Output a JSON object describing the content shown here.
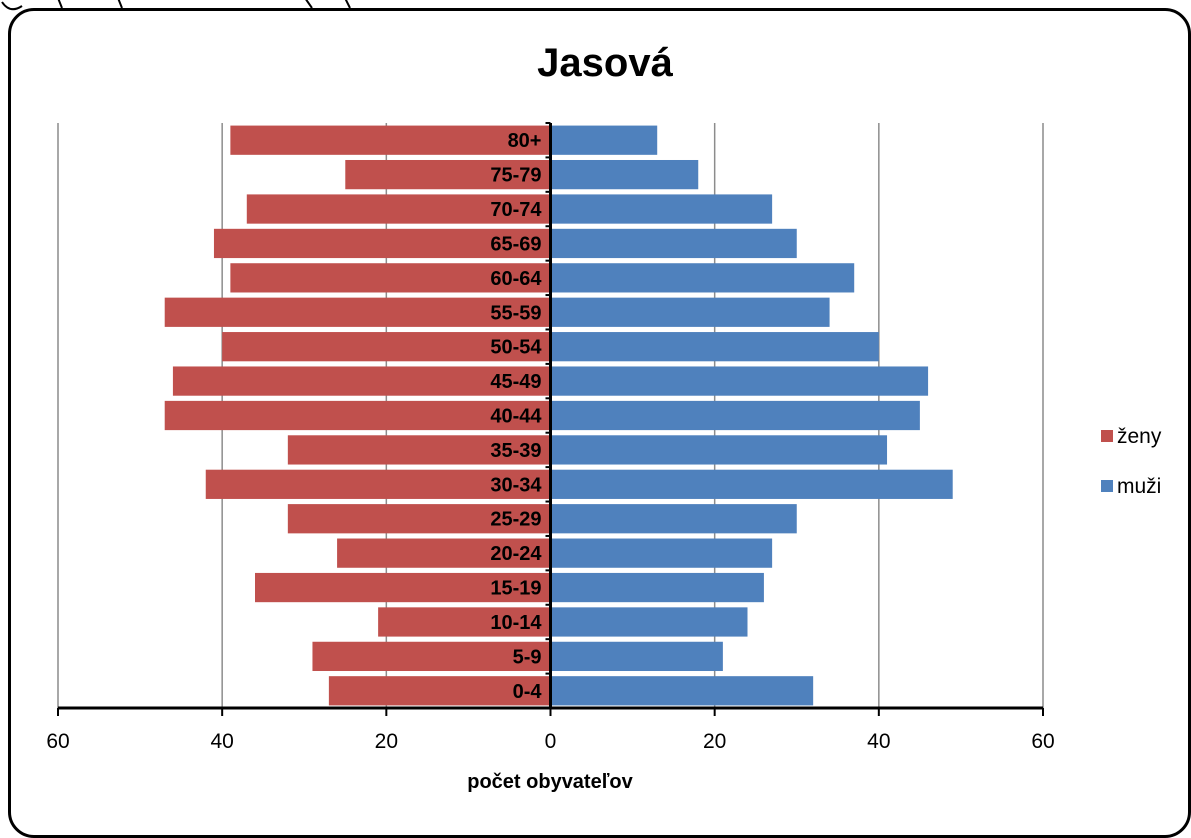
{
  "chart_data": {
    "type": "bar",
    "orientation": "horizontal",
    "title": "Jasová",
    "xlabel": "počet obyvateľov",
    "xlim": [
      -60,
      60
    ],
    "xticks": [
      -60,
      -40,
      -20,
      0,
      20,
      40,
      60
    ],
    "xtick_labels": [
      "60",
      "40",
      "20",
      "0",
      "20",
      "40",
      "60"
    ],
    "grid": true,
    "legend_position": "right",
    "categories": [
      "0-4",
      "5-9",
      "10-14",
      "15-19",
      "20-24",
      "25-29",
      "30-34",
      "35-39",
      "40-44",
      "45-49",
      "50-54",
      "55-59",
      "60-64",
      "65-69",
      "70-74",
      "75-79",
      "80+"
    ],
    "series": [
      {
        "name": "ženy",
        "color": "#C0504D",
        "values": [
          27,
          29,
          21,
          36,
          26,
          32,
          42,
          32,
          47,
          46,
          40,
          47,
          39,
          41,
          37,
          25,
          39
        ]
      },
      {
        "name": "muži",
        "color": "#4F81BD",
        "values": [
          32,
          21,
          24,
          26,
          27,
          30,
          49,
          41,
          45,
          46,
          40,
          34,
          37,
          30,
          27,
          18,
          13
        ]
      }
    ]
  }
}
